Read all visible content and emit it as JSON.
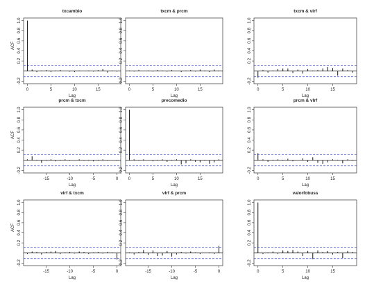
{
  "chart_data": [
    {
      "type": "bar",
      "title": "txcambio",
      "xlabel": "Lag",
      "ylabel": "ACF",
      "xlim": [
        -0.8,
        19.8
      ],
      "ylim": [
        -0.25,
        1.05
      ],
      "x_ticks": [
        0,
        5,
        10,
        15
      ],
      "y_ticks": [
        -0.2,
        0.2,
        0.4,
        0.6,
        0.8,
        1.0
      ],
      "ci": 0.11,
      "lags": [
        0,
        1,
        2,
        3,
        4,
        5,
        6,
        7,
        8,
        9,
        10,
        11,
        12,
        13,
        14,
        15,
        16,
        17,
        18,
        19
      ],
      "values": [
        1.0,
        0.03,
        -0.02,
        0.01,
        0.02,
        -0.02,
        0.01,
        0.02,
        0.0,
        -0.01,
        -0.02,
        0.01,
        0.0,
        0.01,
        -0.01,
        0.02,
        0.04,
        -0.03,
        0.01,
        -0.01
      ]
    },
    {
      "type": "bar",
      "title": "txcm & prcm",
      "xlabel": "Lag",
      "ylabel": "",
      "xlim": [
        -0.8,
        19.8
      ],
      "ylim": [
        -0.25,
        1.05
      ],
      "x_ticks": [
        0,
        5,
        10,
        15
      ],
      "y_ticks": [
        -0.2,
        0.2,
        0.4,
        0.6,
        0.8,
        1.0
      ],
      "ci": 0.11,
      "lags": [
        0,
        1,
        2,
        3,
        4,
        5,
        6,
        7,
        8,
        9,
        10,
        11,
        12,
        13,
        14,
        15,
        16,
        17,
        18,
        19
      ],
      "values": [
        0.01,
        -0.01,
        0.02,
        0.0,
        0.01,
        -0.01,
        0.02,
        0.01,
        -0.01,
        0.02,
        0.0,
        -0.02,
        0.01,
        0.02,
        -0.01,
        0.03,
        0.01,
        -0.02,
        0.03,
        0.01
      ]
    },
    {
      "type": "bar",
      "title": "txcm & vlrf",
      "xlabel": "Lag",
      "ylabel": "",
      "xlim": [
        -0.8,
        19.8
      ],
      "ylim": [
        -0.25,
        1.05
      ],
      "x_ticks": [
        0,
        5,
        10,
        15
      ],
      "y_ticks": [
        -0.2,
        0.2,
        0.4,
        0.6,
        0.8,
        1.0
      ],
      "ci": 0.11,
      "lags": [
        0,
        1,
        2,
        3,
        4,
        5,
        6,
        7,
        8,
        9,
        10,
        11,
        12,
        13,
        14,
        15,
        16,
        17,
        18,
        19
      ],
      "values": [
        -0.13,
        0.02,
        -0.03,
        0.01,
        0.04,
        0.05,
        0.05,
        -0.04,
        0.03,
        -0.05,
        0.04,
        0.01,
        0.02,
        0.05,
        0.08,
        0.06,
        -0.09,
        0.05,
        0.02,
        -0.03
      ]
    },
    {
      "type": "bar",
      "title": "prcm & txcm",
      "xlabel": "Lag",
      "ylabel": "ACF",
      "xlim": [
        -19.8,
        0.8
      ],
      "ylim": [
        -0.25,
        1.05
      ],
      "x_ticks": [
        -15,
        -10,
        -5,
        0
      ],
      "y_ticks": [
        -0.2,
        0.2,
        0.4,
        0.6,
        0.8,
        1.0
      ],
      "ci": 0.11,
      "lags": [
        -19,
        -18,
        -17,
        -16,
        -15,
        -14,
        -13,
        -12,
        -11,
        -10,
        -9,
        -8,
        -7,
        -6,
        -5,
        -4,
        -3,
        -2,
        -1,
        0
      ],
      "values": [
        0.02,
        0.08,
        0.01,
        -0.05,
        0.01,
        0.02,
        -0.02,
        0.01,
        0.02,
        -0.01,
        0.0,
        0.02,
        -0.01,
        0.01,
        -0.02,
        0.01,
        0.02,
        -0.01,
        0.0,
        0.01
      ]
    },
    {
      "type": "bar",
      "title": "precomedio",
      "xlabel": "Lag",
      "ylabel": "",
      "xlim": [
        -0.8,
        19.8
      ],
      "ylim": [
        -0.25,
        1.05
      ],
      "x_ticks": [
        0,
        5,
        10,
        15
      ],
      "y_ticks": [
        -0.2,
        0.2,
        0.4,
        0.6,
        0.8,
        1.0
      ],
      "ci": 0.11,
      "lags": [
        0,
        1,
        2,
        3,
        4,
        5,
        6,
        7,
        8,
        9,
        10,
        11,
        12,
        13,
        14,
        15,
        16,
        17,
        18,
        19
      ],
      "values": [
        1.0,
        0.02,
        -0.01,
        0.02,
        0.0,
        -0.02,
        0.01,
        0.02,
        -0.03,
        0.01,
        0.02,
        -0.08,
        -0.06,
        0.02,
        -0.03,
        -0.04,
        0.01,
        -0.07,
        -0.04,
        0.02
      ]
    },
    {
      "type": "bar",
      "title": "prcm & vlrf",
      "xlabel": "Lag",
      "ylabel": "",
      "xlim": [
        -0.8,
        19.8
      ],
      "ylim": [
        -0.25,
        1.05
      ],
      "x_ticks": [
        0,
        5,
        10,
        15
      ],
      "y_ticks": [
        -0.2,
        0.2,
        0.4,
        0.6,
        0.8,
        1.0
      ],
      "ci": 0.11,
      "lags": [
        0,
        1,
        2,
        3,
        4,
        5,
        6,
        7,
        8,
        9,
        10,
        11,
        12,
        13,
        14,
        15,
        16,
        17,
        18,
        19
      ],
      "values": [
        0.14,
        0.02,
        -0.03,
        0.01,
        0.02,
        0.01,
        0.03,
        -0.02,
        0.0,
        0.04,
        -0.03,
        0.06,
        -0.05,
        -0.07,
        -0.04,
        0.02,
        0.01,
        -0.06,
        0.02,
        0.01
      ]
    },
    {
      "type": "bar",
      "title": "vlrf & txcm",
      "xlabel": "Lag",
      "ylabel": "ACF",
      "xlim": [
        -19.8,
        0.8
      ],
      "ylim": [
        -0.25,
        1.05
      ],
      "x_ticks": [
        -15,
        -10,
        -5,
        0
      ],
      "y_ticks": [
        -0.2,
        0.2,
        0.4,
        0.6,
        0.8,
        1.0
      ],
      "ci": 0.11,
      "lags": [
        -19,
        -18,
        -17,
        -16,
        -15,
        -14,
        -13,
        -12,
        -11,
        -10,
        -9,
        -8,
        -7,
        -6,
        -5,
        -4,
        -3,
        -2,
        -1,
        0
      ],
      "values": [
        -0.02,
        0.03,
        0.02,
        -0.03,
        0.02,
        0.03,
        0.04,
        -0.02,
        0.01,
        0.02,
        -0.01,
        0.03,
        0.02,
        -0.02,
        0.01,
        0.02,
        -0.01,
        0.02,
        0.01,
        -0.13
      ]
    },
    {
      "type": "bar",
      "title": "vlrf & prcm",
      "xlabel": "Lag",
      "ylabel": "",
      "xlim": [
        -19.8,
        0.8
      ],
      "ylim": [
        -0.25,
        1.05
      ],
      "x_ticks": [
        -15,
        -10,
        -5,
        0
      ],
      "y_ticks": [
        -0.2,
        0.2,
        0.4,
        0.6,
        0.8,
        1.0
      ],
      "ci": 0.11,
      "lags": [
        -19,
        -18,
        -17,
        -16,
        -15,
        -14,
        -13,
        -12,
        -11,
        -10,
        -9,
        -8,
        -7,
        -6,
        -5,
        -4,
        -3,
        -2,
        -1,
        0
      ],
      "values": [
        0.01,
        -0.03,
        0.02,
        0.06,
        -0.04,
        0.05,
        -0.06,
        -0.05,
        0.04,
        -0.07,
        -0.03,
        0.02,
        -0.01,
        0.03,
        0.01,
        -0.02,
        0.0,
        0.01,
        -0.02,
        0.14
      ]
    },
    {
      "type": "bar",
      "title": "valorfobuss",
      "xlabel": "Lag",
      "ylabel": "",
      "xlim": [
        -0.8,
        19.8
      ],
      "ylim": [
        -0.25,
        1.05
      ],
      "x_ticks": [
        0,
        5,
        10,
        15
      ],
      "y_ticks": [
        -0.2,
        0.2,
        0.4,
        0.6,
        0.8,
        1.0
      ],
      "ci": 0.11,
      "lags": [
        0,
        1,
        2,
        3,
        4,
        5,
        6,
        7,
        8,
        9,
        10,
        11,
        12,
        13,
        14,
        15,
        16,
        17,
        18,
        19
      ],
      "values": [
        1.0,
        -0.02,
        0.01,
        0.03,
        -0.02,
        0.05,
        0.04,
        0.06,
        0.03,
        -0.06,
        0.04,
        -0.12,
        0.05,
        0.02,
        0.04,
        -0.03,
        0.02,
        -0.1,
        0.04,
        0.02
      ]
    }
  ]
}
